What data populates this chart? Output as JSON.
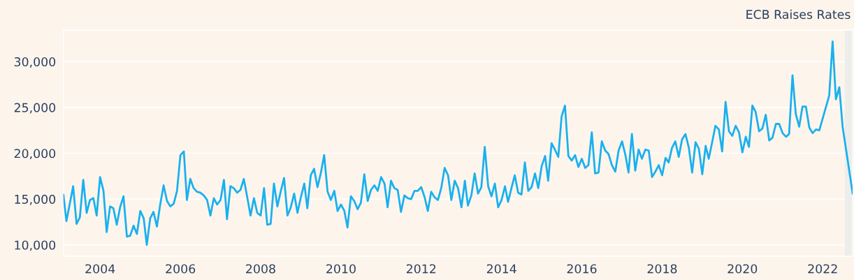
{
  "chart_data": {
    "type": "line",
    "x": [
      "2003-02",
      "2003-03",
      "2003-05",
      "2003-06",
      "2003-07",
      "2003-08",
      "2003-09",
      "2003-10",
      "2003-11",
      "2003-12",
      "2004-01",
      "2004-02",
      "2004-03",
      "2004-04",
      "2004-05",
      "2004-06",
      "2004-07",
      "2004-08",
      "2004-09",
      "2004-10",
      "2004-11",
      "2004-12",
      "2005-01",
      "2005-02",
      "2005-03",
      "2005-04",
      "2005-05",
      "2005-06",
      "2005-07",
      "2005-08",
      "2005-09",
      "2005-10",
      "2005-11",
      "2005-12",
      "2006-01",
      "2006-02",
      "2006-03",
      "2006-04",
      "2006-05",
      "2006-06",
      "2006-07",
      "2006-08",
      "2006-09",
      "2006-10",
      "2006-11",
      "2006-12",
      "2007-01",
      "2007-02",
      "2007-03",
      "2007-04",
      "2007-05",
      "2007-06",
      "2007-07",
      "2007-08",
      "2007-09",
      "2007-10",
      "2007-11",
      "2007-12",
      "2008-01",
      "2008-02",
      "2008-03",
      "2008-04",
      "2008-05",
      "2008-06",
      "2008-07",
      "2008-08",
      "2008-09",
      "2008-10",
      "2008-11",
      "2008-12",
      "2009-01",
      "2009-02",
      "2009-03",
      "2009-04",
      "2009-05",
      "2009-06",
      "2009-07",
      "2009-08",
      "2009-09",
      "2009-10",
      "2009-11",
      "2009-12",
      "2010-01",
      "2010-02",
      "2010-03",
      "2010-04",
      "2010-05",
      "2010-06",
      "2010-07",
      "2010-08",
      "2010-09",
      "2010-10",
      "2010-11",
      "2010-12",
      "2011-01",
      "2011-02",
      "2011-03",
      "2011-04",
      "2011-05",
      "2011-06",
      "2011-07",
      "2011-08",
      "2011-09",
      "2011-10",
      "2011-11",
      "2011-12",
      "2012-01",
      "2012-02",
      "2012-03",
      "2012-04",
      "2012-05",
      "2012-06",
      "2012-07",
      "2012-08",
      "2012-09",
      "2012-10",
      "2012-11",
      "2012-12",
      "2013-01",
      "2013-02",
      "2013-03",
      "2013-04",
      "2013-05",
      "2013-06",
      "2013-07",
      "2013-08",
      "2013-09",
      "2013-10",
      "2013-11",
      "2013-12",
      "2014-01",
      "2014-02",
      "2014-03",
      "2014-04",
      "2014-05",
      "2014-06",
      "2014-07",
      "2014-08",
      "2014-09",
      "2014-10",
      "2014-11",
      "2014-12",
      "2015-01",
      "2015-02",
      "2015-03",
      "2015-04",
      "2015-05",
      "2015-06",
      "2015-07",
      "2015-08",
      "2015-09",
      "2015-10",
      "2015-11",
      "2015-12",
      "2016-01",
      "2016-02",
      "2016-03",
      "2016-04",
      "2016-05",
      "2016-06",
      "2016-07",
      "2016-08",
      "2016-09",
      "2016-10",
      "2016-11",
      "2016-12",
      "2017-01",
      "2017-02",
      "2017-03",
      "2017-04",
      "2017-05",
      "2017-06",
      "2017-07",
      "2017-08",
      "2017-09",
      "2017-10",
      "2017-11",
      "2017-12",
      "2018-01",
      "2018-02",
      "2018-03",
      "2018-04",
      "2018-05",
      "2018-06",
      "2018-07",
      "2018-08",
      "2018-09",
      "2018-10",
      "2018-11",
      "2018-12",
      "2019-01",
      "2019-02",
      "2019-03",
      "2019-04",
      "2019-05",
      "2019-06",
      "2019-07",
      "2019-08",
      "2019-09",
      "2019-10",
      "2019-11",
      "2019-12",
      "2020-01",
      "2020-02",
      "2020-03",
      "2020-04",
      "2020-05",
      "2020-06",
      "2020-07",
      "2020-08",
      "2020-09",
      "2020-10",
      "2020-11",
      "2020-12",
      "2021-01",
      "2021-02",
      "2021-03",
      "2021-04",
      "2021-05",
      "2021-06",
      "2021-07",
      "2021-08",
      "2021-09",
      "2021-10",
      "2021-11",
      "2021-12",
      "2022-03",
      "2022-04",
      "2022-05",
      "2022-06",
      "2022-07",
      "2022-10"
    ],
    "series": [
      {
        "color": "#1ab0ef",
        "values": [
          15500,
          12600,
          16400,
          12300,
          13000,
          17100,
          13500,
          14900,
          15100,
          13200,
          17400,
          15900,
          11400,
          14200,
          14000,
          12200,
          14100,
          15300,
          10900,
          11000,
          12100,
          11200,
          13700,
          12900,
          10000,
          12900,
          13600,
          12000,
          14400,
          16500,
          14800,
          14200,
          14500,
          15900,
          19800,
          20200,
          14900,
          17200,
          16200,
          15800,
          15700,
          15400,
          14900,
          13200,
          15100,
          14400,
          14900,
          17100,
          12800,
          16400,
          16200,
          15700,
          16000,
          17200,
          15200,
          13200,
          15100,
          13500,
          13200,
          16200,
          12200,
          12300,
          16700,
          14200,
          15800,
          17300,
          13200,
          14100,
          15600,
          13500,
          15200,
          16700,
          14000,
          17600,
          18300,
          16300,
          17800,
          19800,
          15800,
          14900,
          15900,
          13700,
          14400,
          13700,
          11900,
          15300,
          14800,
          13900,
          14600,
          17700,
          14800,
          16000,
          16500,
          15900,
          17400,
          16700,
          14100,
          17000,
          16200,
          16000,
          13600,
          15400,
          15100,
          15000,
          15900,
          15900,
          16300,
          15200,
          13700,
          15800,
          15200,
          14900,
          16200,
          18400,
          17600,
          14900,
          17000,
          16200,
          14100,
          17000,
          14300,
          15400,
          17800,
          15600,
          16300,
          20700,
          16400,
          15300,
          16700,
          14100,
          14900,
          16400,
          14700,
          16200,
          17600,
          15700,
          15500,
          19000,
          15900,
          16300,
          17800,
          16200,
          18600,
          19700,
          17000,
          21100,
          20400,
          19600,
          24000,
          25200,
          19700,
          19200,
          19800,
          18500,
          19400,
          18400,
          18700,
          22300,
          17800,
          17900,
          21300,
          20300,
          19900,
          18700,
          18000,
          20300,
          21300,
          19800,
          17900,
          22100,
          18100,
          20400,
          19400,
          20400,
          20300,
          17400,
          18000,
          18700,
          17600,
          19500,
          19000,
          20600,
          21300,
          19600,
          21500,
          22100,
          20600,
          17900,
          21200,
          20500,
          17700,
          20800,
          19400,
          21200,
          23000,
          22600,
          20200,
          25600,
          22400,
          21900,
          23000,
          22300,
          20100,
          21800,
          20700,
          25200,
          24500,
          22400,
          22700,
          24200,
          21400,
          21700,
          23200,
          23200,
          22200,
          21800,
          22100,
          28500,
          24300,
          22900,
          25100,
          25100,
          22800,
          22200,
          22600,
          22500,
          26300,
          32200,
          25900,
          27200,
          22900,
          15600
        ]
      }
    ],
    "line_style": "solid",
    "xlim": [
      "2003-02",
      "2022-10"
    ],
    "xticks": [
      "2004",
      "2006",
      "2008",
      "2010",
      "2012",
      "2014",
      "2016",
      "2018",
      "2020",
      "2022"
    ],
    "ylim": [
      8760,
      33450
    ],
    "yticks": [
      {
        "value": 10000,
        "label": "10,000"
      },
      {
        "value": 15000,
        "label": "15,000"
      },
      {
        "value": 20000,
        "label": "20,000"
      },
      {
        "value": 25000,
        "label": "25,000"
      },
      {
        "value": 30000,
        "label": "30,000"
      }
    ],
    "grid": "y",
    "bands": [
      {
        "axis": "x",
        "from": "2022-07-21",
        "to": "2022-10",
        "label": "ECB Raises Rates",
        "color": "#ededeb"
      }
    ]
  }
}
